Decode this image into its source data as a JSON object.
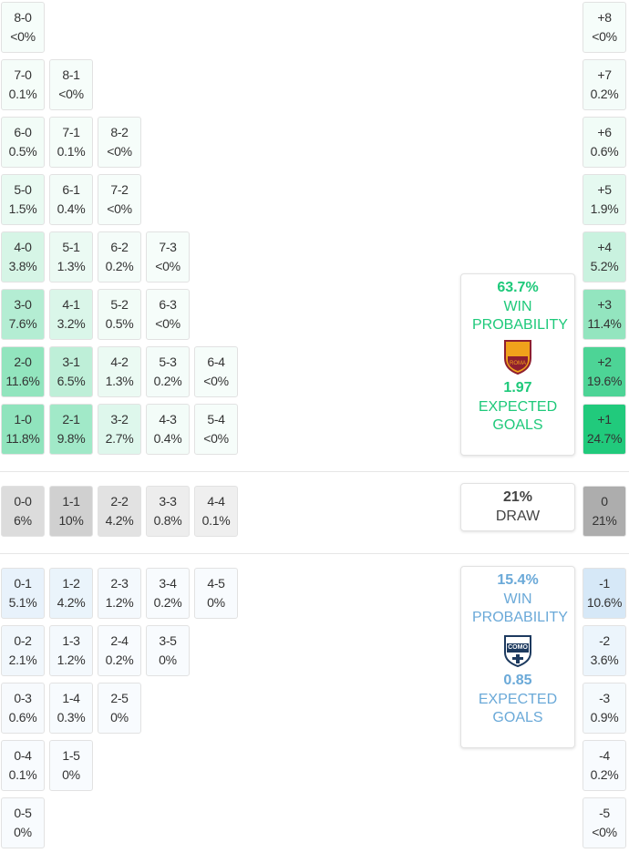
{
  "home_grid": [
    [
      [
        "8-0",
        "<0%"
      ]
    ],
    [
      [
        "7-0",
        "0.1%"
      ],
      [
        "8-1",
        "<0%"
      ]
    ],
    [
      [
        "6-0",
        "0.5%"
      ],
      [
        "7-1",
        "0.1%"
      ],
      [
        "8-2",
        "<0%"
      ]
    ],
    [
      [
        "5-0",
        "1.5%"
      ],
      [
        "6-1",
        "0.4%"
      ],
      [
        "7-2",
        "<0%"
      ]
    ],
    [
      [
        "4-0",
        "3.8%"
      ],
      [
        "5-1",
        "1.3%"
      ],
      [
        "6-2",
        "0.2%"
      ],
      [
        "7-3",
        "<0%"
      ]
    ],
    [
      [
        "3-0",
        "7.6%"
      ],
      [
        "4-1",
        "3.2%"
      ],
      [
        "5-2",
        "0.5%"
      ],
      [
        "6-3",
        "<0%"
      ]
    ],
    [
      [
        "2-0",
        "11.6%"
      ],
      [
        "3-1",
        "6.5%"
      ],
      [
        "4-2",
        "1.3%"
      ],
      [
        "5-3",
        "0.2%"
      ],
      [
        "6-4",
        "<0%"
      ]
    ],
    [
      [
        "1-0",
        "11.8%"
      ],
      [
        "2-1",
        "9.8%"
      ],
      [
        "3-2",
        "2.7%"
      ],
      [
        "4-3",
        "0.4%"
      ],
      [
        "5-4",
        "<0%"
      ]
    ]
  ],
  "draw_grid": [
    [
      [
        "0-0",
        "6%"
      ],
      [
        "1-1",
        "10%"
      ],
      [
        "2-2",
        "4.2%"
      ],
      [
        "3-3",
        "0.8%"
      ],
      [
        "4-4",
        "0.1%"
      ]
    ]
  ],
  "away_grid": [
    [
      [
        "0-1",
        "5.1%"
      ],
      [
        "1-2",
        "4.2%"
      ],
      [
        "2-3",
        "1.2%"
      ],
      [
        "3-4",
        "0.2%"
      ],
      [
        "4-5",
        "0%"
      ]
    ],
    [
      [
        "0-2",
        "2.1%"
      ],
      [
        "1-3",
        "1.2%"
      ],
      [
        "2-4",
        "0.2%"
      ],
      [
        "3-5",
        "0%"
      ]
    ],
    [
      [
        "0-3",
        "0.6%"
      ],
      [
        "1-4",
        "0.3%"
      ],
      [
        "2-5",
        "0%"
      ]
    ],
    [
      [
        "0-4",
        "0.1%"
      ],
      [
        "1-5",
        "0%"
      ]
    ],
    [
      [
        "0-5",
        "0%"
      ]
    ]
  ],
  "home_margins": [
    [
      "+8",
      "<0%"
    ],
    [
      "+7",
      "0.2%"
    ],
    [
      "+6",
      "0.6%"
    ],
    [
      "+5",
      "1.9%"
    ],
    [
      "+4",
      "5.2%"
    ],
    [
      "+3",
      "11.4%"
    ],
    [
      "+2",
      "19.6%"
    ],
    [
      "+1",
      "24.7%"
    ]
  ],
  "draw_margins": [
    [
      "0",
      "21%"
    ]
  ],
  "away_margins": [
    [
      "-1",
      "10.6%"
    ],
    [
      "-2",
      "3.6%"
    ],
    [
      "-3",
      "0.9%"
    ],
    [
      "-4",
      "0.2%"
    ],
    [
      "-5",
      "<0%"
    ]
  ],
  "home_summary": {
    "win": "63.7%",
    "win_label": "WIN PROBABILITY",
    "xg": "1.97",
    "xg_label": "EXPECTED GOALS"
  },
  "draw_summary": {
    "prob": "21%",
    "label": "DRAW"
  },
  "away_summary": {
    "win": "15.4%",
    "win_label": "WIN PROBABILITY",
    "xg": "0.85",
    "xg_label": "EXPECTED GOALS"
  }
}
